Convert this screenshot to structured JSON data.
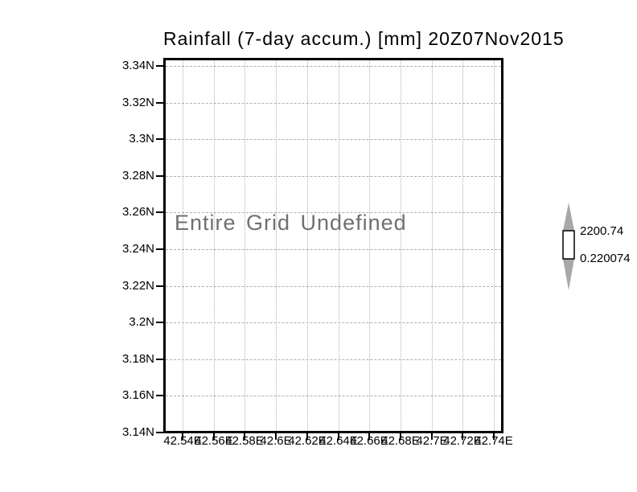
{
  "chart_data": {
    "type": "map",
    "title": "Rainfall (7-day accum.) [mm] 20Z07Nov2015",
    "status_message": "Entire Grid Undefined",
    "grid": true,
    "series": [],
    "x_axis": {
      "range": [
        42.54,
        42.74
      ],
      "tick_labels": [
        "42.54E",
        "42.56E",
        "42.58E",
        "42.6E",
        "42.62E",
        "42.64E",
        "42.66E",
        "42.68E",
        "42.7E",
        "42.72E",
        "42.74E"
      ]
    },
    "y_axis": {
      "range": [
        3.14,
        3.34
      ],
      "tick_labels": [
        "3.34N",
        "3.32N",
        "3.3N",
        "3.28N",
        "3.26N",
        "3.24N",
        "3.22N",
        "3.2N",
        "3.18N",
        "3.16N",
        "3.14N"
      ]
    },
    "colorbar": {
      "max_label": "2200.74",
      "min_label": "0.220074",
      "max_value": 2200.74,
      "min_value": 0.220074
    },
    "colors": {
      "frame": "#000000",
      "grid": "#b0b0b0",
      "message": "#707070",
      "text": "#000000",
      "colorbar_arrow": "#a8a8a8",
      "colorbar_box": "#ffffff"
    }
  }
}
